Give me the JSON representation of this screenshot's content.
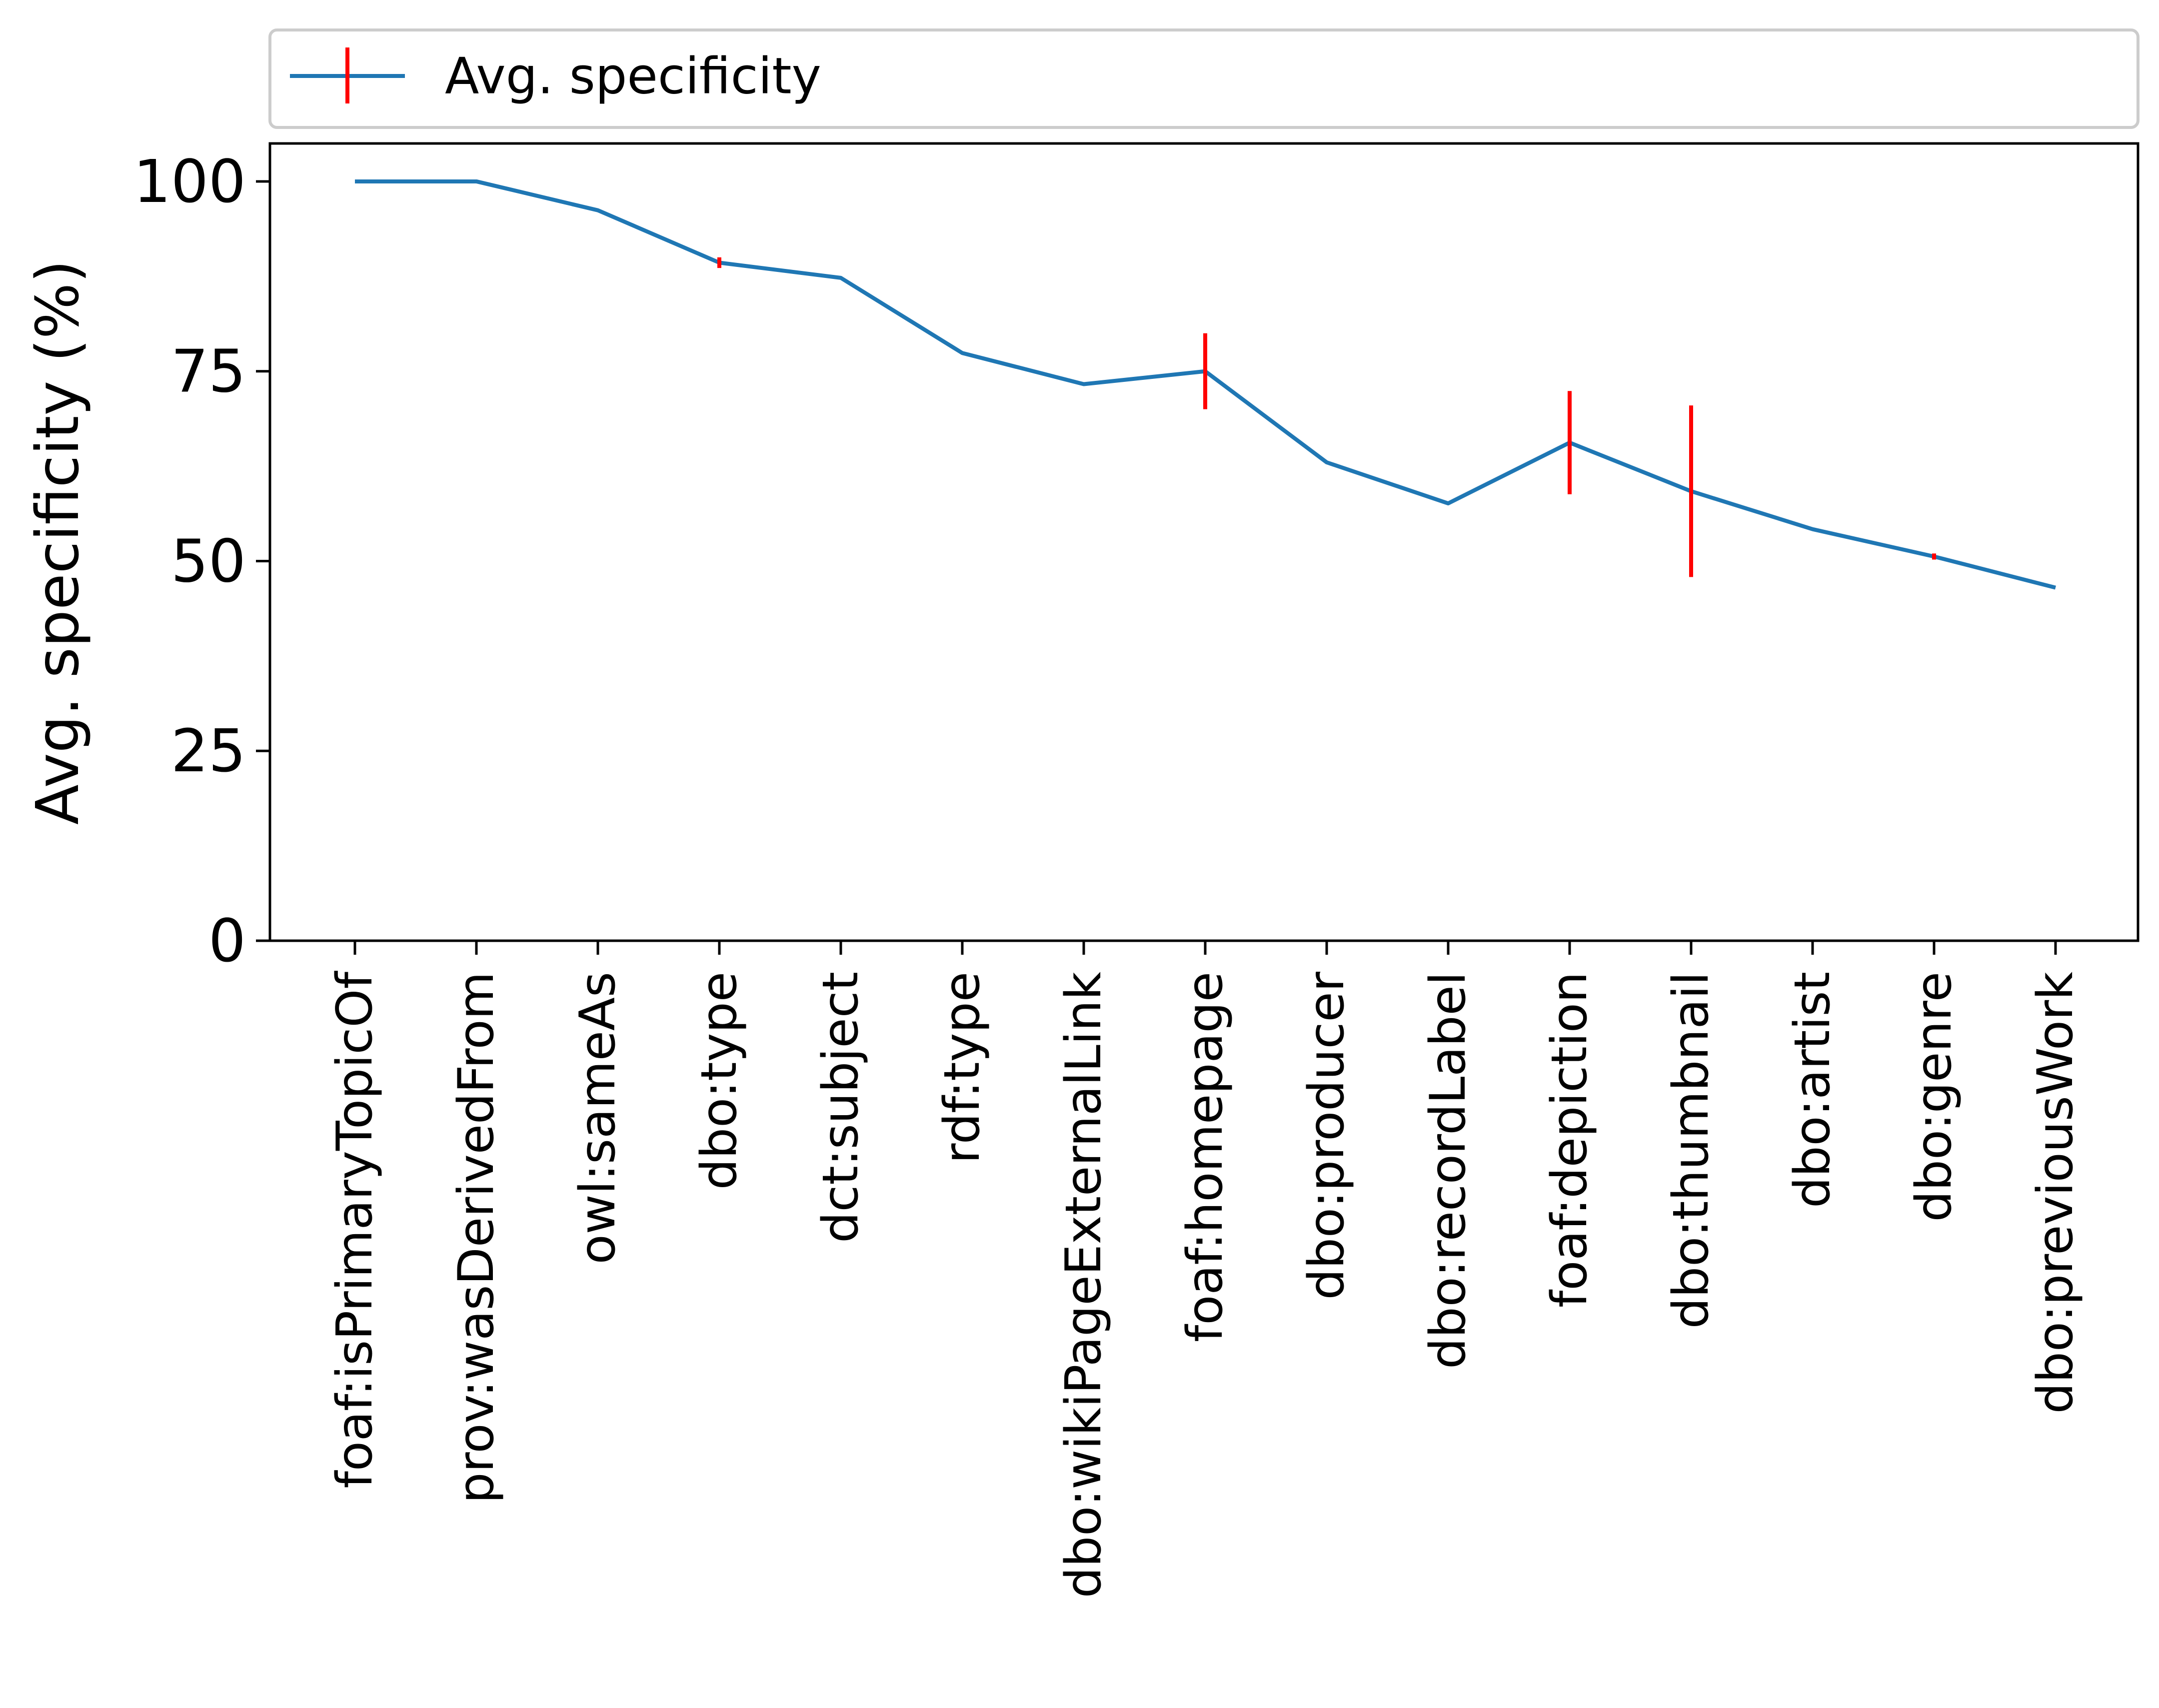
{
  "chart_data": {
    "type": "line",
    "title": "",
    "xlabel": "",
    "ylabel": "Avg. specificity (%)",
    "ylim": [
      0,
      105
    ],
    "yticks": [
      0,
      25,
      50,
      75,
      100
    ],
    "ytick_labels": [
      "0",
      "25",
      "50",
      "75",
      "100"
    ],
    "grid": false,
    "legend_position": "top",
    "categories": [
      "foaf:isPrimaryTopicOf",
      "prov:wasDerivedFrom",
      "owl:sameAs",
      "dbo:type",
      "dct:subject",
      "rdf:type",
      "dbo:wikiPageExternalLink",
      "foaf:homepage",
      "dbo:producer",
      "dbo:recordLabel",
      "foaf:depiction",
      "dbo:thumbnail",
      "dbo:artist",
      "dbo:genre",
      "dbo:previousWork"
    ],
    "series": [
      {
        "name": "Avg. specificity",
        "color": "#1f77b4",
        "error_color": "#ff0000",
        "values": [
          100,
          100,
          96.2,
          89.3,
          87.3,
          77.4,
          73.3,
          75.0,
          63.0,
          57.6,
          65.6,
          59.2,
          54.2,
          50.6,
          46.5
        ],
        "errors": [
          0,
          0,
          0,
          0.7,
          0,
          0,
          0,
          5.0,
          0,
          0,
          6.8,
          11.3,
          0,
          0.4,
          0
        ]
      }
    ]
  }
}
